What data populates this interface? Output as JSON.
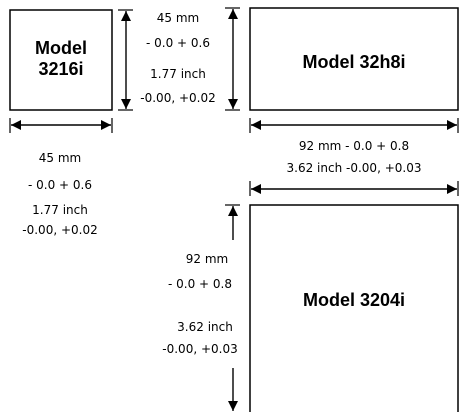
{
  "models": {
    "m3216": {
      "line1": "Model",
      "line2": "3216i"
    },
    "m32h8": {
      "name": "Model 32h8i"
    },
    "m3204": {
      "name": "Model 3204i"
    }
  },
  "dims_3216_height": {
    "mm": "45 mm",
    "mm_tol": "- 0.0 + 0.6",
    "inch": "1.77 inch",
    "inch_tol": "-0.00, +0.02"
  },
  "dims_3216_width": {
    "mm": "45 mm",
    "mm_tol": "- 0.0 + 0.6",
    "inch": "1.77 inch",
    "inch_tol": "-0.00, +0.02"
  },
  "dims_32h8_width": {
    "mm_line": "92 mm  - 0.0 + 0.8",
    "inch_line": "3.62 inch  -0.00, +0.03"
  },
  "dims_3204_height": {
    "mm": "92 mm",
    "mm_tol": "- 0.0 + 0.8",
    "inch": "3.62 inch",
    "inch_tol": "-0.00, +0.03"
  }
}
